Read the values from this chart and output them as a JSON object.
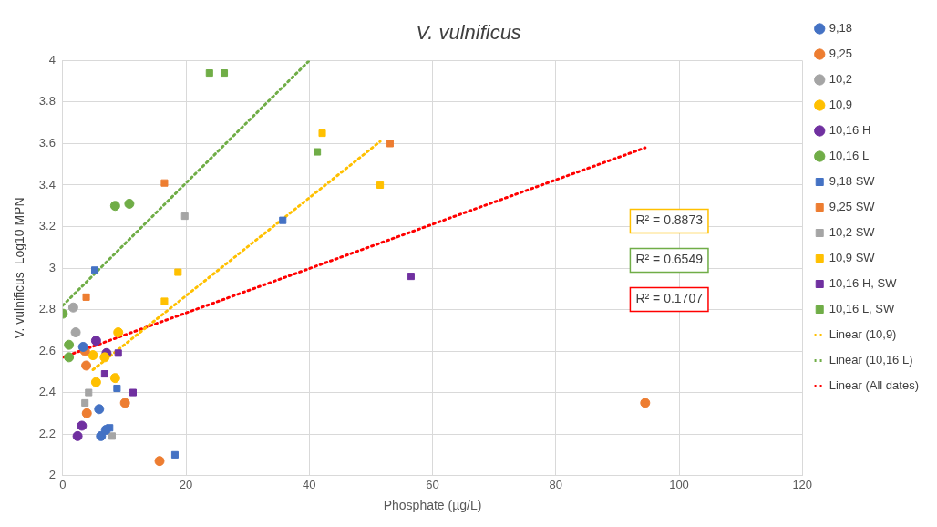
{
  "chart_data": {
    "type": "scatter",
    "title": "V. vulnificus",
    "xlabel": "Phosphate (µg/L)",
    "ylabel": "V. vulnificus  Log10 MPN",
    "xlim": [
      0,
      120
    ],
    "xticks": [
      0,
      20,
      40,
      60,
      80,
      100,
      120
    ],
    "ylim": [
      2,
      4
    ],
    "yticks": [
      2,
      2.2,
      2.4,
      2.6,
      2.8,
      3,
      3.2,
      3.4,
      3.6,
      3.8,
      4
    ],
    "grid": true,
    "legend": "right",
    "annotations": [
      "R² = 0.8873",
      "R² = 0.6549",
      "R² = 0.1707"
    ],
    "series": [
      {
        "name": "9,18",
        "color": "#4472c4",
        "marker": "circle",
        "x": [
          3.3,
          5.9,
          6.2,
          7.0
        ],
        "values": [
          2.62,
          2.32,
          2.19,
          2.22
        ]
      },
      {
        "name": "9,25",
        "color": "#ed7d31",
        "marker": "circle",
        "x": [
          3.6,
          3.8,
          3.9,
          10.1,
          15.7,
          94.5
        ],
        "values": [
          2.6,
          2.53,
          2.3,
          2.35,
          2.07,
          2.35
        ]
      },
      {
        "name": "10,2",
        "color": "#a5a5a5",
        "marker": "circle",
        "x": [
          1.7,
          2.1
        ],
        "values": [
          2.81,
          2.69
        ]
      },
      {
        "name": "10,9",
        "color": "#ffc000",
        "marker": "circle",
        "x": [
          4.9,
          5.4,
          6.8,
          8.5,
          9.0
        ],
        "values": [
          2.58,
          2.45,
          2.57,
          2.47,
          2.69
        ]
      },
      {
        "name": "10,16 H",
        "color": "#7030a0",
        "marker": "circle",
        "x": [
          2.4,
          3.1,
          5.4,
          7.1
        ],
        "values": [
          2.19,
          2.24,
          2.65,
          2.59
        ]
      },
      {
        "name": "10,16 L",
        "color": "#70ad47",
        "marker": "circle",
        "x": [
          0,
          1.0,
          1.0,
          8.5,
          10.8
        ],
        "values": [
          2.78,
          2.63,
          2.57,
          3.3,
          3.31
        ]
      },
      {
        "name": "9,18 SW",
        "color": "#4472c4",
        "marker": "square",
        "x": [
          5.2,
          7.6,
          8.8,
          18.2,
          35.7
        ],
        "values": [
          2.99,
          2.23,
          2.42,
          2.1,
          3.23
        ]
      },
      {
        "name": "9,25 SW",
        "color": "#ed7d31",
        "marker": "square",
        "x": [
          3.8,
          16.5,
          53.1
        ],
        "values": [
          2.86,
          3.41,
          3.6
        ]
      },
      {
        "name": "10,2 SW",
        "color": "#a5a5a5",
        "marker": "square",
        "x": [
          3.6,
          4.2,
          8.0,
          19.8
        ],
        "values": [
          2.35,
          2.4,
          2.19,
          3.25
        ]
      },
      {
        "name": "10,9 SW",
        "color": "#ffc000",
        "marker": "square",
        "x": [
          16.5,
          18.7,
          42.1,
          51.5
        ],
        "values": [
          2.84,
          2.98,
          3.65,
          3.4
        ]
      },
      {
        "name": "10,16 H, SW",
        "color": "#7030a0",
        "marker": "square",
        "x": [
          6.8,
          9.0,
          11.4,
          56.5
        ],
        "values": [
          2.49,
          2.59,
          2.4,
          2.96
        ]
      },
      {
        "name": "10,16 L, SW",
        "color": "#70ad47",
        "marker": "square",
        "x": [
          23.8,
          26.2,
          41.3
        ],
        "values": [
          3.94,
          3.94,
          3.56
        ]
      },
      {
        "name": "Linear (10,9)",
        "type": "line",
        "color": "#ffc000",
        "line_style": "dotted",
        "marker": "none",
        "x": [
          4.9,
          51.5
        ],
        "values": [
          2.51,
          3.61
        ]
      },
      {
        "name": "Linear (10,16 L)",
        "type": "line",
        "color": "#70ad47",
        "line_style": "dotted",
        "marker": "none",
        "x": [
          0,
          40
        ],
        "values": [
          2.82,
          4.0
        ]
      },
      {
        "name": "Linear (All dates)",
        "type": "line",
        "color": "#ff0000",
        "line_style": "dotted",
        "marker": "none",
        "x": [
          0,
          94.5
        ],
        "values": [
          2.57,
          3.58
        ]
      }
    ]
  }
}
